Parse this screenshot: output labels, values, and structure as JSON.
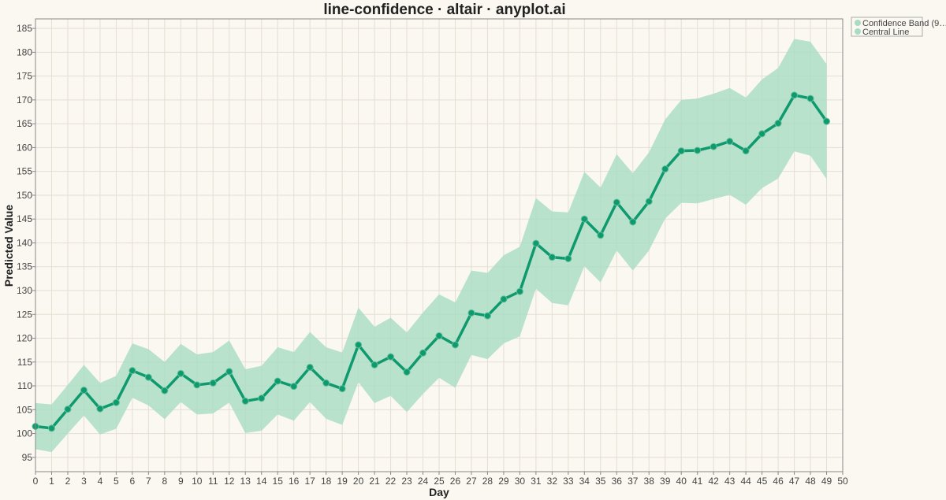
{
  "chart_data": {
    "type": "line",
    "title": "line-confidence · altair · anyplot.ai",
    "xlabel": "Day",
    "ylabel": "Predicted Value",
    "xlim": [
      0,
      50
    ],
    "ylim": [
      92,
      187
    ],
    "x_ticks": [
      0,
      1,
      2,
      3,
      4,
      5,
      6,
      7,
      8,
      9,
      10,
      11,
      12,
      13,
      14,
      15,
      16,
      17,
      18,
      19,
      20,
      21,
      22,
      23,
      24,
      25,
      26,
      27,
      28,
      29,
      30,
      31,
      32,
      33,
      34,
      35,
      36,
      37,
      38,
      39,
      40,
      41,
      42,
      43,
      44,
      45,
      46,
      47,
      48,
      49,
      50
    ],
    "y_ticks": [
      95,
      100,
      105,
      110,
      115,
      120,
      125,
      130,
      135,
      140,
      145,
      150,
      155,
      160,
      165,
      170,
      175,
      180,
      185
    ],
    "grid": true,
    "legend_position": "top-right",
    "colors": {
      "line": "#0E9A6E",
      "band": "#A8DCC3",
      "background": "#FAF8F1"
    },
    "legend": [
      {
        "label": "Confidence Band (9…",
        "color": "#A8DCC3"
      },
      {
        "label": "Central Line",
        "color": "#A8DCC3"
      }
    ],
    "series": [
      {
        "name": "Central Line",
        "x": [
          0,
          1,
          2,
          3,
          4,
          5,
          6,
          7,
          8,
          9,
          10,
          11,
          12,
          13,
          14,
          15,
          16,
          17,
          18,
          19,
          20,
          21,
          22,
          23,
          24,
          25,
          26,
          27,
          28,
          29,
          30,
          31,
          32,
          33,
          34,
          35,
          36,
          37,
          38,
          39,
          40,
          41,
          42,
          43,
          44,
          45,
          46,
          47,
          48,
          49
        ],
        "y": [
          101.5,
          101.1,
          105.1,
          109.1,
          105.2,
          106.5,
          113.2,
          111.8,
          109.0,
          112.6,
          110.2,
          110.6,
          113.0,
          106.8,
          107.4,
          111.0,
          109.9,
          113.9,
          110.6,
          109.4,
          118.6,
          114.4,
          116.1,
          112.9,
          116.9,
          120.5,
          118.6,
          125.3,
          124.7,
          128.2,
          129.8,
          139.9,
          137.0,
          136.7,
          145.0,
          141.6,
          148.5,
          144.4,
          148.7,
          155.5,
          159.3,
          159.4,
          160.2,
          161.3,
          159.3,
          162.9,
          165.1,
          171.0,
          170.3,
          165.5
        ]
      },
      {
        "name": "Confidence Band (9…",
        "x": [
          0,
          1,
          2,
          3,
          4,
          5,
          6,
          7,
          8,
          9,
          10,
          11,
          12,
          13,
          14,
          15,
          16,
          17,
          18,
          19,
          20,
          21,
          22,
          23,
          24,
          25,
          26,
          27,
          28,
          29,
          30,
          31,
          32,
          33,
          34,
          35,
          36,
          37,
          38,
          39,
          40,
          41,
          42,
          43,
          44,
          45,
          46,
          47,
          48,
          49
        ],
        "lower": [
          96.7,
          96.1,
          100.0,
          103.8,
          99.8,
          101.0,
          107.5,
          105.9,
          103.0,
          106.6,
          104.0,
          104.2,
          106.5,
          100.1,
          100.6,
          104.0,
          102.7,
          106.6,
          103.1,
          101.8,
          110.8,
          106.4,
          107.9,
          104.5,
          108.3,
          111.7,
          109.6,
          116.5,
          115.6,
          118.9,
          120.4,
          130.4,
          127.4,
          126.9,
          135.1,
          131.7,
          138.4,
          134.2,
          138.4,
          145.1,
          148.4,
          148.3,
          149.2,
          150.1,
          148.0,
          151.5,
          153.5,
          159.2,
          158.3,
          153.4
        ],
        "upper": [
          106.4,
          106.1,
          110.2,
          114.4,
          110.6,
          112.1,
          118.9,
          117.7,
          115.0,
          118.8,
          116.6,
          117.1,
          119.5,
          113.5,
          114.2,
          118.1,
          117.1,
          121.3,
          118.1,
          117.0,
          126.4,
          122.4,
          124.3,
          121.2,
          125.4,
          129.2,
          127.5,
          134.2,
          133.7,
          137.4,
          139.2,
          149.4,
          146.6,
          146.4,
          154.9,
          151.6,
          158.6,
          154.6,
          159.0,
          165.9,
          170.0,
          170.3,
          171.3,
          172.5,
          170.5,
          174.3,
          176.7,
          182.8,
          182.2,
          177.5
        ]
      }
    ]
  }
}
